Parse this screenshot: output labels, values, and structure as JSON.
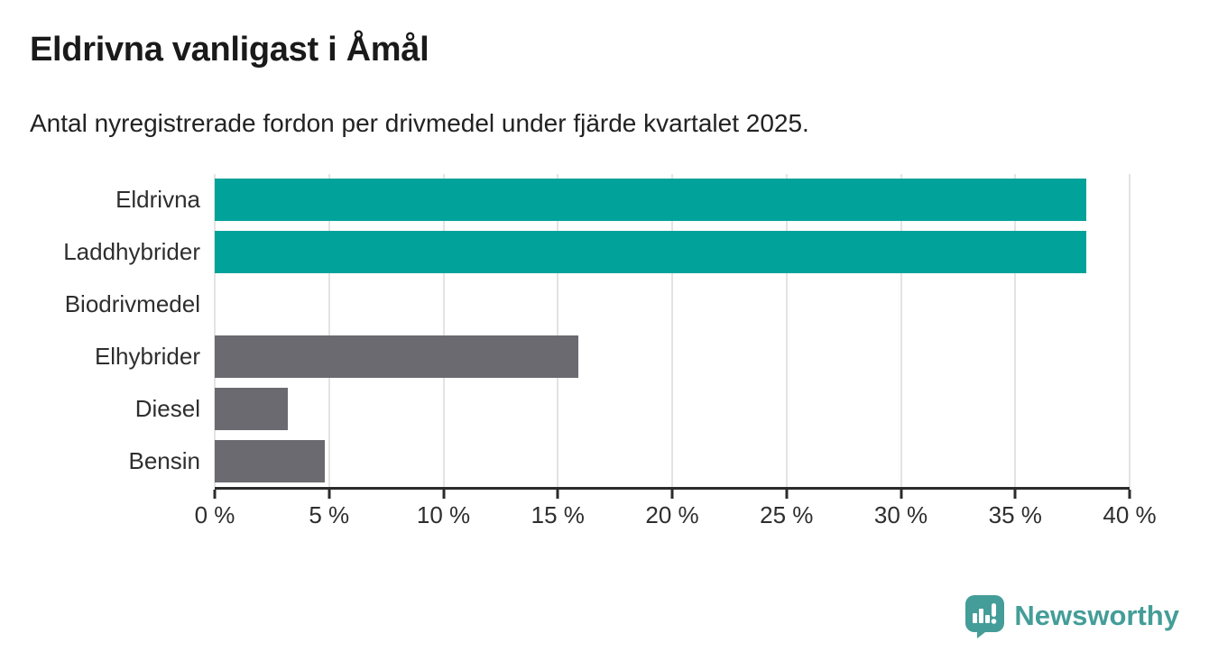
{
  "chart_data": {
    "type": "bar",
    "orientation": "horizontal",
    "title": "Eldrivna vanligast i Åmål",
    "subtitle": "Antal nyregistrerade fordon per drivmedel under fjärde kvartalet 2025.",
    "categories": [
      "Eldrivna",
      "Laddhybrider",
      "Biodrivmedel",
      "Elhybrider",
      "Diesel",
      "Bensin"
    ],
    "values": [
      38.1,
      38.1,
      0,
      15.9,
      3.2,
      4.8
    ],
    "unit": "%",
    "xlim": [
      0,
      40
    ],
    "x_ticks": [
      0,
      5,
      10,
      15,
      20,
      25,
      30,
      35,
      40
    ],
    "x_tick_labels": [
      "0 %",
      "5 %",
      "10 %",
      "15 %",
      "20 %",
      "25 %",
      "30 %",
      "35 %",
      "40 %"
    ],
    "bar_colors": [
      "#00a29a",
      "#00a29a",
      "#6a6a70",
      "#6a6a70",
      "#6a6a70",
      "#6a6a70"
    ],
    "highlight_color": "#00a29a",
    "default_color": "#6a6a70",
    "grid": "vertical",
    "legend": "none"
  },
  "logo": {
    "text": "Newsworthy",
    "color": "#449d98",
    "icon": "newsworthy-speech-bubble-bar-chart-icon"
  }
}
